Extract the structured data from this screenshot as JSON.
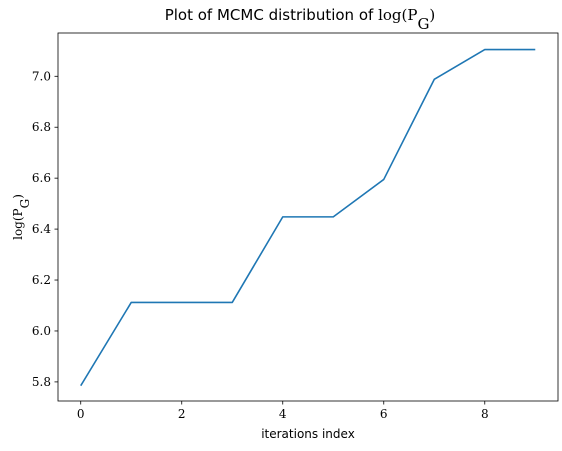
{
  "chart_data": {
    "type": "line",
    "title_text": "Plot of MCMC distribution of ",
    "title_math": "log(P",
    "title_math_sub": "G",
    "title_math_end": ")",
    "xlabel": "iterations index",
    "ylabel_math": "log(P",
    "ylabel_math_sub": "G",
    "ylabel_math_end": ")",
    "xlim": [
      -0.45,
      9.45
    ],
    "ylim": [
      5.725,
      7.17
    ],
    "xticks": [
      0,
      2,
      4,
      6,
      8
    ],
    "xtick_labels": [
      "0",
      "2",
      "4",
      "6",
      "8"
    ],
    "yticks": [
      5.8,
      6.0,
      6.2,
      6.4,
      6.6,
      6.8,
      7.0
    ],
    "ytick_labels": [
      "5.8",
      "6.0",
      "6.2",
      "6.4",
      "6.6",
      "6.8",
      "7.0"
    ],
    "grid": false,
    "series": [
      {
        "x": [
          0,
          1,
          2,
          3,
          4,
          5,
          6,
          7,
          8,
          9
        ],
        "values": [
          5.785,
          6.112,
          6.112,
          6.112,
          6.448,
          6.448,
          6.595,
          6.988,
          7.105,
          7.105
        ],
        "color": "#1f77b4"
      }
    ]
  }
}
